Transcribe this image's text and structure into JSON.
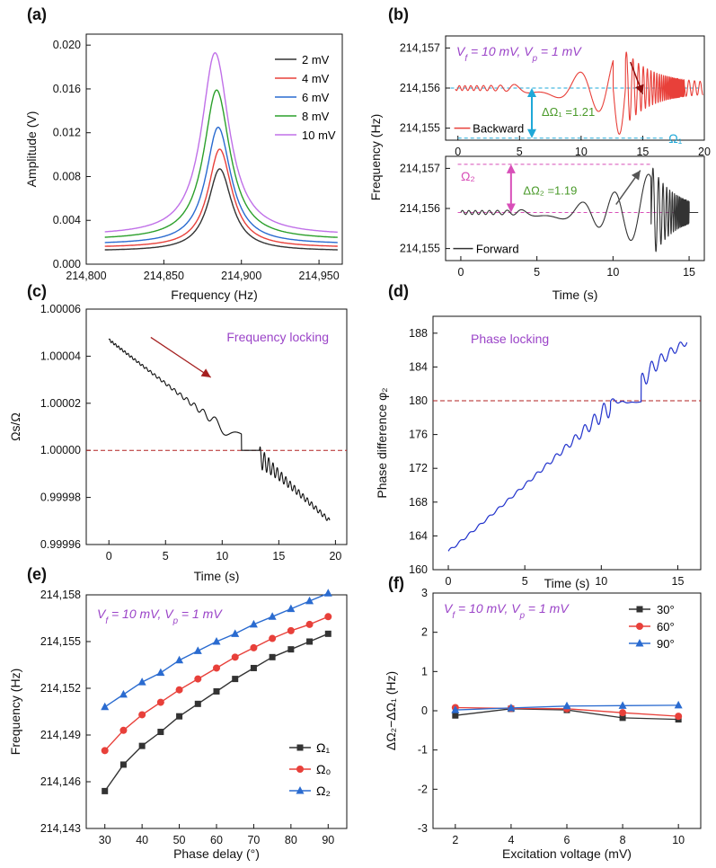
{
  "colors": {
    "black": "#333333",
    "red": "#e8403a",
    "blue": "#2a6bd0",
    "green": "#2ca02c",
    "violet": "#c070e8",
    "purple_text": "#9b44c8",
    "ref_line": "#b22222",
    "cyan": "#1fa8d8",
    "magenta": "#d84fb8",
    "olive": "#4a9a2a",
    "navy": "#2233cc",
    "grey_arrow": "#555555"
  },
  "chart_data": [
    {
      "id": "a",
      "panel_label": "(a)",
      "type": "line",
      "xlabel": "Frequency (Hz)",
      "ylabel": "Amplitude (V)",
      "xlim": [
        214800,
        214965
      ],
      "ylim": [
        0,
        0.021
      ],
      "x_ticks": [
        214800,
        214850,
        214900,
        214950
      ],
      "x_tick_labels": [
        "214,800",
        "214,850",
        "214,900",
        "214,950"
      ],
      "y_ticks": [
        0,
        0.004,
        0.008,
        0.012,
        0.016,
        0.02
      ],
      "y_tick_labels": [
        "0.000",
        "0.004",
        "0.008",
        "0.012",
        "0.016",
        "0.020"
      ],
      "legend_position": "top-right",
      "series": [
        {
          "name": "2 mV",
          "peak_x": 214886,
          "peak_y": 0.0087,
          "base_y": 0.0012,
          "width": 9,
          "color": "#333333"
        },
        {
          "name": "4 mV",
          "peak_x": 214886,
          "peak_y": 0.0105,
          "base_y": 0.0015,
          "width": 9,
          "color": "#e8403a"
        },
        {
          "name": "6 mV",
          "peak_x": 214885,
          "peak_y": 0.0125,
          "base_y": 0.0018,
          "width": 9.5,
          "color": "#2a6bd0"
        },
        {
          "name": "8 mV",
          "peak_x": 214884,
          "peak_y": 0.0159,
          "base_y": 0.0022,
          "width": 10,
          "color": "#2ca02c"
        },
        {
          "name": "10 mV",
          "peak_x": 214883,
          "peak_y": 0.0193,
          "base_y": 0.0026,
          "width": 10.5,
          "color": "#c070e8"
        }
      ]
    },
    {
      "id": "b",
      "panel_label": "(b)",
      "type": "line",
      "xlabel": "Time (s)",
      "ylabel": "Frequency (Hz)",
      "annotation": "V_f = 10 mV, V_p = 1 mV",
      "top": {
        "series_name": "Backward",
        "xlim": [
          -1,
          20
        ],
        "ylim": [
          214154.7,
          214157.3
        ],
        "x_ticks": [
          0,
          5,
          10,
          15,
          20
        ],
        "y_ticks": [
          214155,
          214156,
          214157
        ],
        "y_tick_labels": [
          "214,155",
          "214,156",
          "214,157"
        ],
        "center_y": 214156,
        "omega1_y": 214154.75,
        "omega1_label": "Ω₁",
        "delta_label": "ΔΩ₁ =1.21"
      },
      "bottom": {
        "series_name": "Forward",
        "xlim": [
          -1,
          16
        ],
        "ylim": [
          214154.7,
          214157.3
        ],
        "x_ticks": [
          0,
          5,
          10,
          15
        ],
        "y_ticks": [
          214155,
          214156,
          214157
        ],
        "y_tick_labels": [
          "214,155",
          "214,156",
          "214,157"
        ],
        "center_y": 214155.9,
        "omega2_y": 214157.1,
        "omega2_label": "Ω₂",
        "delta_label": "ΔΩ₂ =1.19"
      }
    },
    {
      "id": "c",
      "panel_label": "(c)",
      "type": "line",
      "xlabel": "Time (s)",
      "ylabel": "Ωs/Ω",
      "annotation": "Frequency locking",
      "xlim": [
        -2,
        21
      ],
      "ylim": [
        0.99996,
        1.00006
      ],
      "x_ticks": [
        0,
        5,
        10,
        15,
        20
      ],
      "y_ticks": [
        0.99996,
        0.99998,
        1.0,
        1.00002,
        1.00004,
        1.00006
      ],
      "y_tick_labels": [
        "0.99996",
        "0.99998",
        "1.00000",
        "1.00002",
        "1.00004",
        "1.00006"
      ],
      "reference_y": 1.0,
      "start": [
        0,
        1.000047
      ],
      "end": [
        19.5,
        0.99997
      ],
      "lock_range": [
        11.7,
        13.3
      ]
    },
    {
      "id": "d",
      "panel_label": "(d)",
      "type": "line",
      "xlabel": "Time (s)",
      "ylabel": "Phase difference φ₂",
      "annotation": "Phase locking",
      "xlim": [
        -1,
        16.5
      ],
      "ylim": [
        160,
        190
      ],
      "x_ticks": [
        0,
        5,
        10,
        15
      ],
      "y_ticks": [
        160,
        164,
        168,
        172,
        176,
        180,
        184,
        188
      ],
      "reference_y": 180,
      "start": [
        0,
        162.2
      ],
      "end": [
        15.6,
        187
      ]
    },
    {
      "id": "e",
      "panel_label": "(e)",
      "type": "line",
      "xlabel": "Phase delay (°)",
      "ylabel": "Frequency (Hz)",
      "annotation": "V_f = 10 mV, V_p = 1 mV",
      "xlim": [
        25,
        95
      ],
      "ylim": [
        214143,
        214158
      ],
      "x_ticks": [
        30,
        40,
        50,
        60,
        70,
        80,
        90
      ],
      "y_ticks": [
        214143,
        214146,
        214149,
        214152,
        214155,
        214158
      ],
      "y_tick_labels": [
        "214,143",
        "214,146",
        "214,149",
        "214,152",
        "214,155",
        "214,158"
      ],
      "legend_position": "bottom-right",
      "x": [
        30,
        35,
        40,
        45,
        50,
        55,
        60,
        65,
        70,
        75,
        80,
        85,
        90
      ],
      "series": [
        {
          "name": "Ω₁",
          "marker": "square",
          "color": "#333333",
          "values": [
            214145.4,
            214147.1,
            214148.3,
            214149.2,
            214150.2,
            214151.0,
            214151.8,
            214152.6,
            214153.3,
            214154.0,
            214154.5,
            214155.0,
            214155.5
          ]
        },
        {
          "name": "Ω₀",
          "marker": "circle",
          "color": "#e8403a",
          "values": [
            214148.0,
            214149.3,
            214150.3,
            214151.1,
            214151.9,
            214152.6,
            214153.3,
            214154.0,
            214154.6,
            214155.2,
            214155.7,
            214156.1,
            214156.6
          ]
        },
        {
          "name": "Ω₂",
          "marker": "triangle",
          "color": "#2a6bd0",
          "values": [
            214150.8,
            214151.6,
            214152.4,
            214153.0,
            214153.8,
            214154.4,
            214155.0,
            214155.5,
            214156.1,
            214156.6,
            214157.1,
            214157.6,
            214158.1
          ]
        }
      ]
    },
    {
      "id": "f",
      "panel_label": "(f)",
      "type": "line",
      "xlabel": "Excitation voltage (mV)",
      "ylabel": "ΔΩ₂−ΔΩ₁ (Hz)",
      "annotation": "V_f = 10 mV, V_p = 1 mV",
      "xlim": [
        1.2,
        10.8
      ],
      "ylim": [
        -3,
        3
      ],
      "x_ticks": [
        2,
        4,
        6,
        8,
        10
      ],
      "y_ticks": [
        -3,
        -2,
        -1,
        0,
        1,
        2,
        3
      ],
      "legend_position": "top-right",
      "x": [
        2,
        4,
        6,
        8,
        10
      ],
      "series": [
        {
          "name": "30°",
          "marker": "square",
          "color": "#333333",
          "values": [
            -0.12,
            0.05,
            0.02,
            -0.18,
            -0.22
          ]
        },
        {
          "name": "60°",
          "marker": "circle",
          "color": "#e8403a",
          "values": [
            0.08,
            0.06,
            0.05,
            -0.05,
            -0.14
          ]
        },
        {
          "name": "90°",
          "marker": "triangle",
          "color": "#2a6bd0",
          "values": [
            0.02,
            0.07,
            0.12,
            0.13,
            0.14
          ]
        }
      ]
    }
  ]
}
